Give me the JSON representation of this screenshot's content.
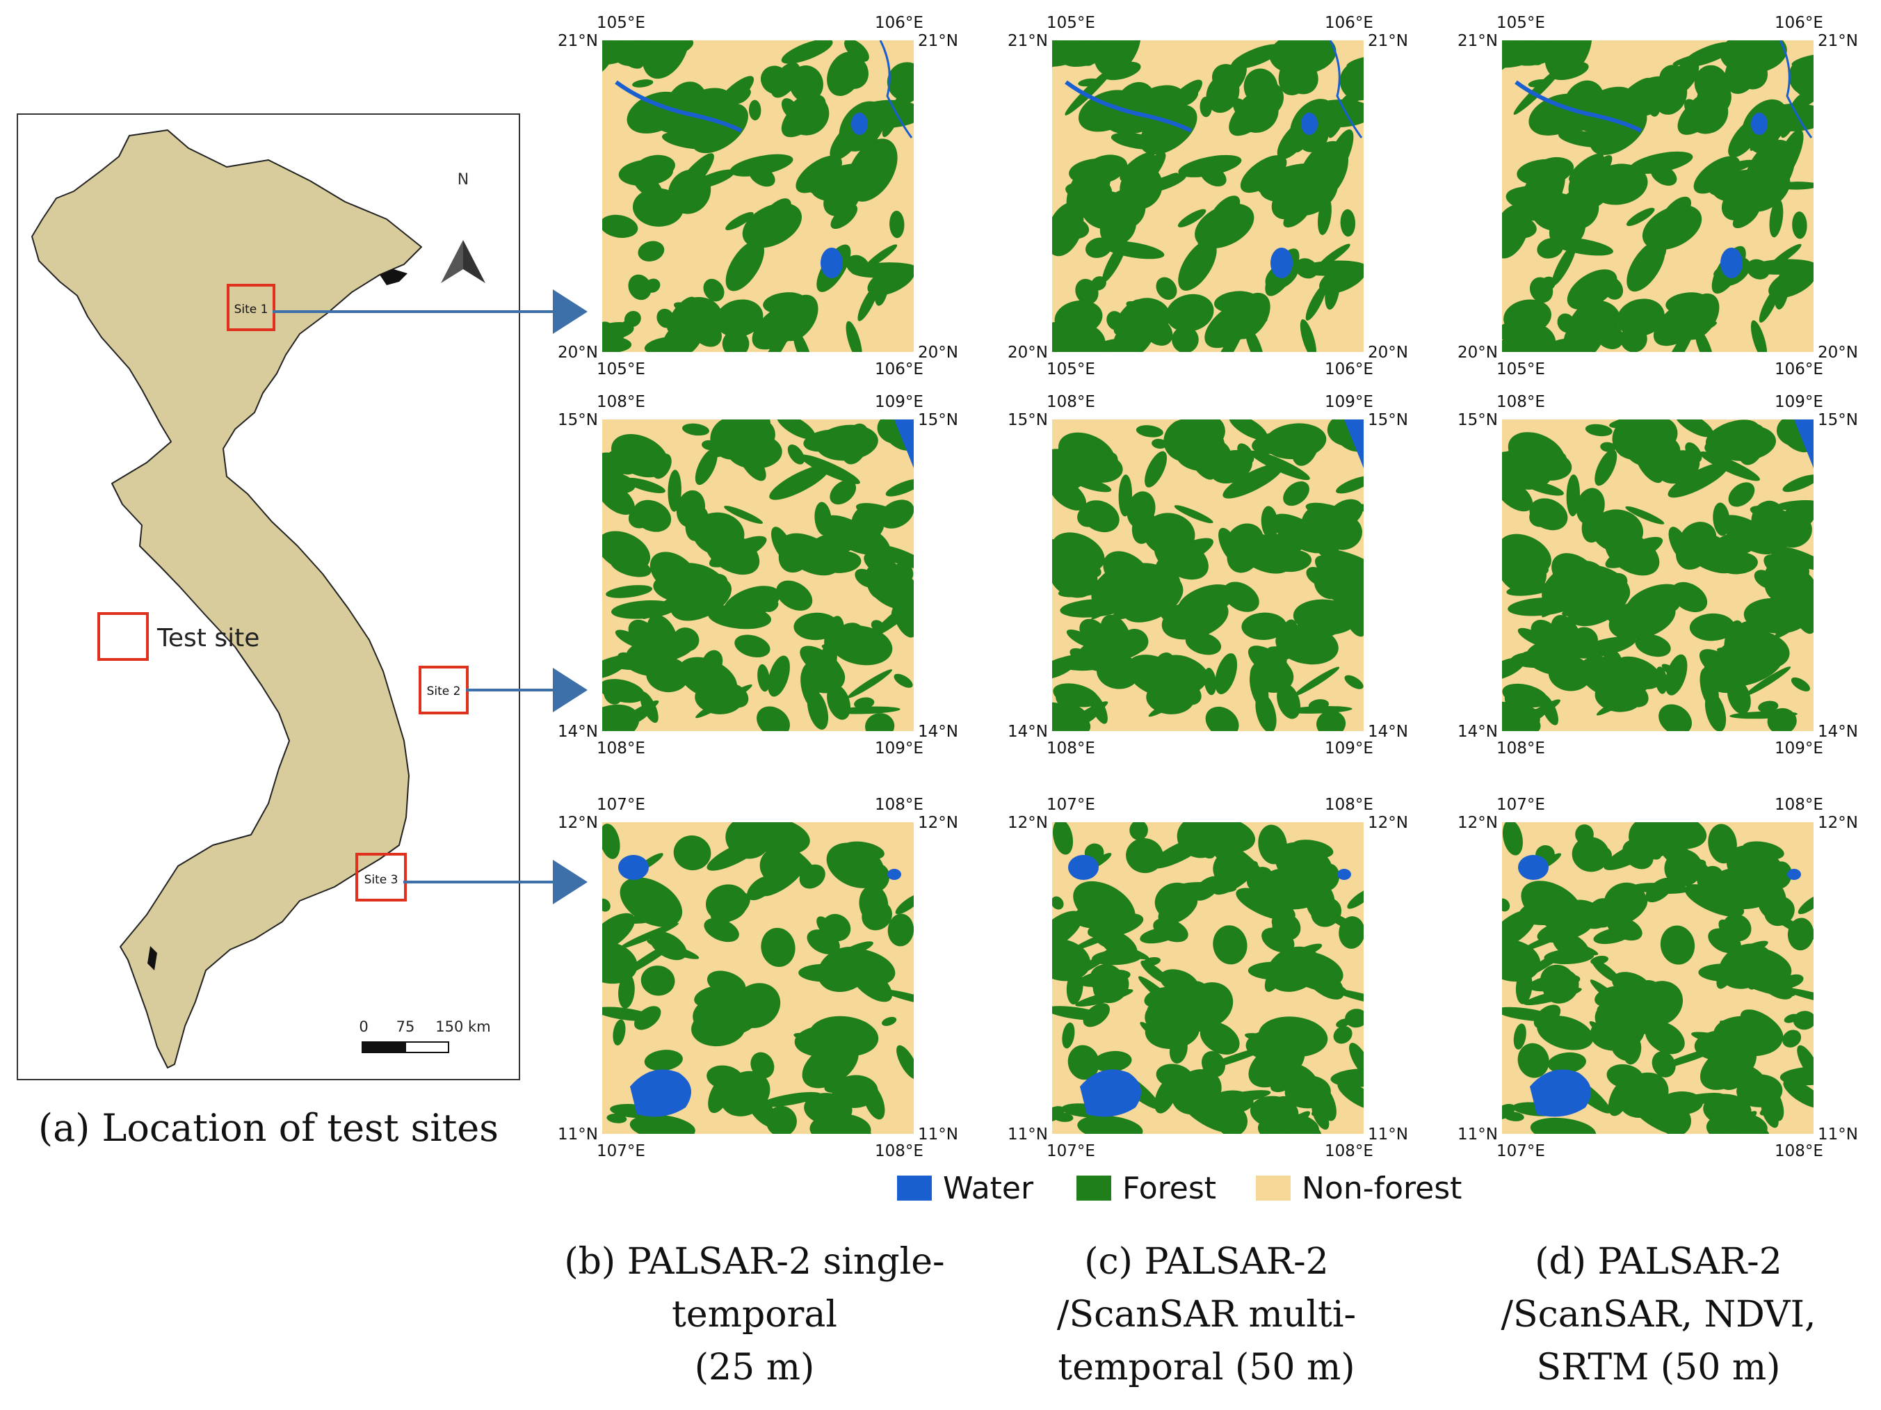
{
  "location_map": {
    "caption": "(a) Location of test sites",
    "legend_label": "Test site",
    "north_label": "N",
    "scalebar": {
      "labels": [
        "0",
        "75",
        "150 km"
      ]
    },
    "sites": [
      {
        "label": "Site 1"
      },
      {
        "label": "Site 2"
      },
      {
        "label": "Site 3"
      }
    ]
  },
  "columns": [
    {
      "caption_lines": [
        "(b)  PALSAR-2  single-",
        "temporal",
        "(25 m)"
      ]
    },
    {
      "caption_lines": [
        "(c)  PALSAR-2",
        "/ScanSAR multi-",
        "temporal (50 m)"
      ]
    },
    {
      "caption_lines": [
        "(d)  PALSAR-2",
        "/ScanSAR, NDVI,",
        "SRTM (50 m)"
      ]
    }
  ],
  "rows": [
    {
      "site": "Site 1",
      "west": "105°E",
      "east": "106°E",
      "north": "21°N",
      "south": "20°N"
    },
    {
      "site": "Site 2",
      "west": "108°E",
      "east": "109°E",
      "north": "15°N",
      "south": "14°N"
    },
    {
      "site": "Site 3",
      "west": "107°E",
      "east": "108°E",
      "north": "12°N",
      "south": "11°N"
    }
  ],
  "legend": [
    {
      "label": "Water",
      "color": "#1a5fd0"
    },
    {
      "label": "Forest",
      "color": "#1f7f1a"
    },
    {
      "label": "Non-forest",
      "color": "#f6d898"
    }
  ],
  "colors": {
    "land": "#d8cc9c",
    "site_box": "#e0301e",
    "arrow": "#3d6fa8",
    "water": "#1a5fd0",
    "forest": "#1f7f1a",
    "nonforest": "#f6d898"
  }
}
